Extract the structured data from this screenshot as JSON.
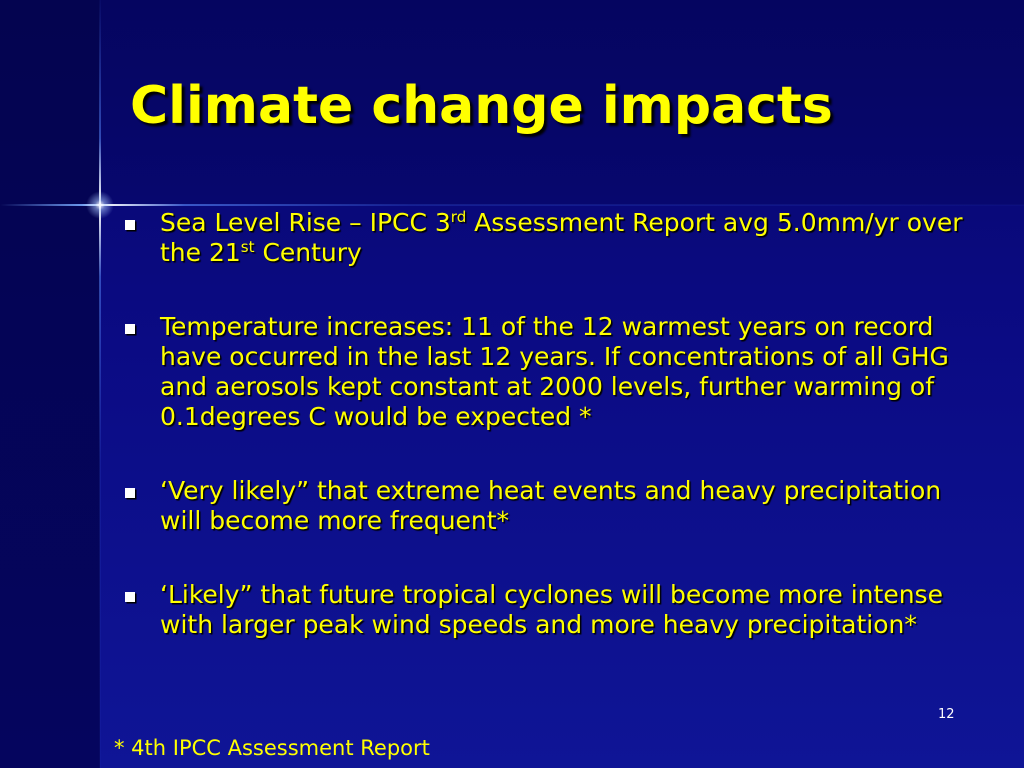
{
  "slide": {
    "title": "Climate change impacts",
    "bullets": [
      {
        "part1": "Sea Level Rise – IPCC 3",
        "sup1": "rd",
        "part2": " Assessment Report avg 5.0mm/yr over the 21",
        "sup2": "st",
        "part3": " Century"
      },
      {
        "text": "Temperature increases: 11 of the 12 warmest years on record have occurred in the last 12 years. If concentrations of all GHG and aerosols kept constant at 2000 levels, further warming of 0.1degrees C would be expected *"
      },
      {
        "text": "‘Very likely” that extreme heat events and heavy precipitation will become more frequent*"
      },
      {
        "text": "‘Likely” that future tropical cyclones will become more intense with larger peak wind speeds and more heavy precipitation*"
      }
    ],
    "page_number": "12",
    "footnote": "* 4th IPCC Assessment Report"
  },
  "colors": {
    "background": "#0b0b84",
    "title": "#ffff00",
    "body_text": "#ffff00",
    "bullet_marker": "#ffffff",
    "page_number": "#ffffff"
  },
  "icons": {
    "bullet": "square-bullet-icon"
  }
}
